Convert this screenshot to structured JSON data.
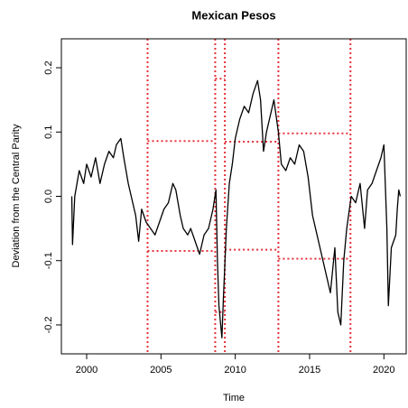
{
  "chart_data": {
    "type": "line",
    "title": "Mexican Pesos",
    "xlabel": "Time",
    "ylabel": "Deviation from the Central Parity",
    "color": "#000000",
    "ref_color": "#e8303a",
    "x": [
      1999.0,
      1999.05,
      1999.2,
      1999.5,
      1999.8,
      2000.0,
      2000.3,
      2000.6,
      2000.9,
      2001.2,
      2001.5,
      2001.8,
      2002.0,
      2002.3,
      2002.5,
      2002.8,
      2003.0,
      2003.3,
      2003.5,
      2003.7,
      2004.0,
      2004.3,
      2004.6,
      2004.9,
      2005.2,
      2005.5,
      2005.8,
      2006.0,
      2006.3,
      2006.5,
      2006.8,
      2007.0,
      2007.3,
      2007.6,
      2007.9,
      2008.2,
      2008.5,
      2008.7,
      2008.8,
      2008.9,
      2009.1,
      2009.2,
      2009.4,
      2009.6,
      2009.8,
      2010.0,
      2010.3,
      2010.6,
      2010.9,
      2011.2,
      2011.5,
      2011.7,
      2011.9,
      2012.1,
      2012.3,
      2012.6,
      2012.9,
      2013.1,
      2013.4,
      2013.7,
      2014.0,
      2014.3,
      2014.6,
      2014.9,
      2015.2,
      2015.5,
      2015.8,
      2016.1,
      2016.4,
      2016.7,
      2016.9,
      2017.1,
      2017.3,
      2017.5,
      2017.8,
      2018.1,
      2018.4,
      2018.7,
      2018.9,
      2019.2,
      2019.5,
      2019.8,
      2020.0,
      2020.2,
      2020.3,
      2020.5,
      2020.8,
      2020.9,
      2021.0,
      2021.1
    ],
    "values": [
      0.0,
      -0.075,
      0.0,
      0.04,
      0.02,
      0.05,
      0.03,
      0.06,
      0.02,
      0.05,
      0.07,
      0.06,
      0.08,
      0.09,
      0.06,
      0.02,
      0.0,
      -0.03,
      -0.07,
      -0.02,
      -0.04,
      -0.05,
      -0.06,
      -0.04,
      -0.02,
      -0.01,
      0.02,
      0.01,
      -0.03,
      -0.05,
      -0.06,
      -0.05,
      -0.07,
      -0.09,
      -0.06,
      -0.05,
      -0.02,
      0.01,
      -0.1,
      -0.17,
      -0.22,
      -0.16,
      -0.05,
      0.02,
      0.05,
      0.09,
      0.12,
      0.14,
      0.13,
      0.16,
      0.18,
      0.15,
      0.07,
      0.1,
      0.12,
      0.15,
      0.1,
      0.05,
      0.04,
      0.06,
      0.05,
      0.08,
      0.07,
      0.03,
      -0.03,
      -0.06,
      -0.09,
      -0.12,
      -0.15,
      -0.08,
      -0.18,
      -0.2,
      -0.1,
      -0.05,
      0.0,
      -0.01,
      0.02,
      -0.05,
      0.01,
      0.02,
      0.04,
      0.06,
      0.08,
      -0.05,
      -0.17,
      -0.08,
      -0.06,
      -0.02,
      0.01,
      0.0
    ],
    "vlines": [
      2004.1,
      2008.65,
      2009.3,
      2012.9,
      2017.75
    ],
    "bands": [
      {
        "x": [
          2004.1,
          2008.65
        ],
        "upper": 0.086,
        "lower": -0.085
      },
      {
        "x": [
          2008.65,
          2009.3
        ],
        "upper": 0.183,
        "lower": -0.18
      },
      {
        "x": [
          2009.3,
          2012.9
        ],
        "upper": 0.085,
        "lower": -0.083
      },
      {
        "x": [
          2012.9,
          2017.75
        ],
        "upper": 0.098,
        "lower": -0.097
      }
    ],
    "xlim": [
      1998.3,
      2021.5
    ],
    "ylim": [
      -0.245,
      0.245
    ],
    "xticks": [
      2000,
      2005,
      2010,
      2015,
      2020
    ],
    "yticks": [
      -0.2,
      -0.1,
      {
        "value": 0,
        "label": "0.0"
      },
      0.1,
      0.2
    ]
  }
}
